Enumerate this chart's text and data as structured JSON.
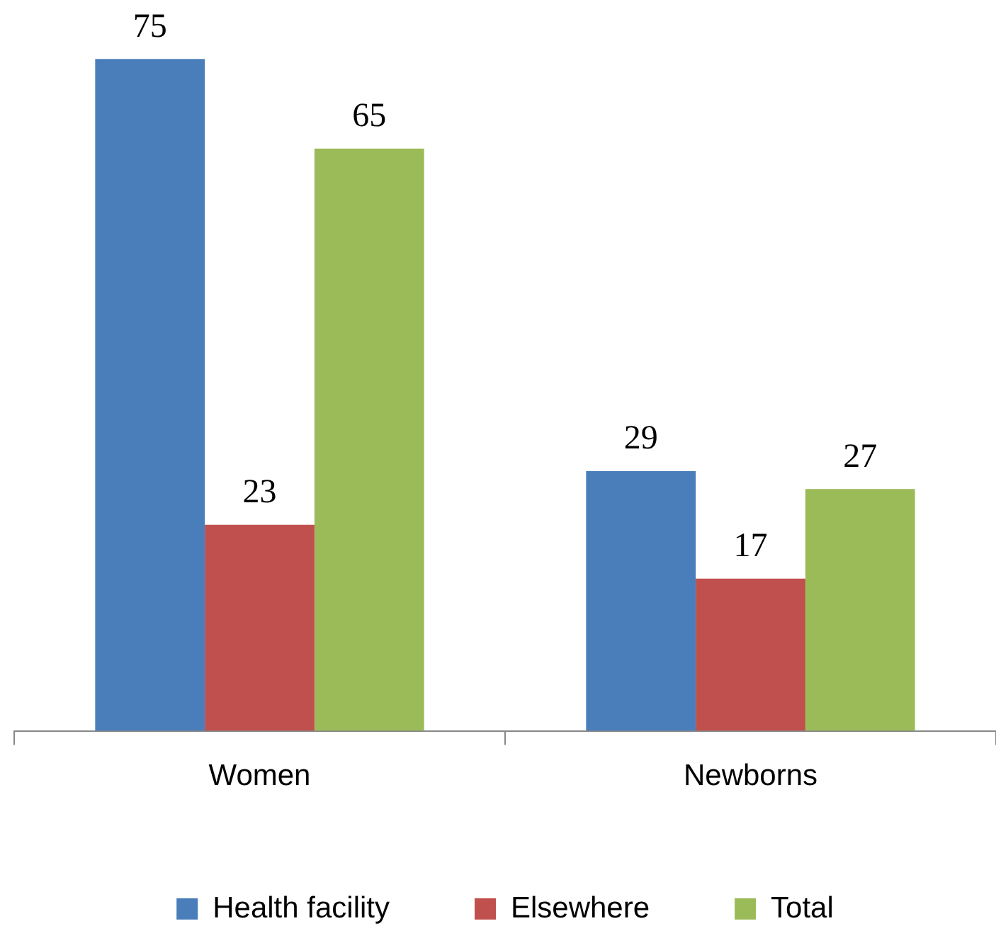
{
  "chart_data": {
    "type": "bar",
    "categories": [
      "Women",
      "Newborns"
    ],
    "series": [
      {
        "name": "Health facility",
        "color": "#4a7ebb",
        "values": [
          75,
          29
        ]
      },
      {
        "name": "Elsewhere",
        "color": "#c0504d",
        "values": [
          23,
          17
        ]
      },
      {
        "name": "Total",
        "color": "#9bbb59",
        "values": [
          65,
          27
        ]
      }
    ],
    "data_labels": true,
    "legend": "bottom",
    "grid": false
  }
}
